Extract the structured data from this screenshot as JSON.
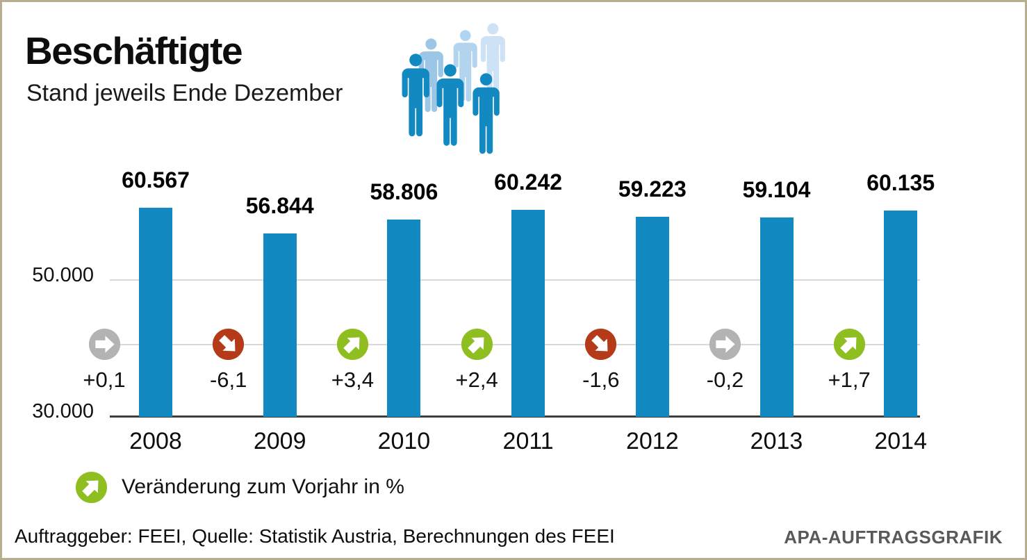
{
  "header": {
    "title": "Beschäftigte",
    "subtitle": "Stand jeweils Ende Dezember"
  },
  "chart_data": {
    "type": "bar",
    "title": "Beschäftigte",
    "subtitle": "Stand jeweils Ende Dezember",
    "categories": [
      "2008",
      "2009",
      "2010",
      "2011",
      "2012",
      "2013",
      "2014"
    ],
    "series": [
      {
        "name": "Beschäftigte (Stand jeweils Ende Dezember)",
        "values": [
          60567,
          56844,
          58806,
          60242,
          59223,
          59104,
          60135
        ]
      }
    ],
    "value_labels": [
      "60.567",
      "56.844",
      "58.806",
      "60.242",
      "59.223",
      "59.104",
      "60.135"
    ],
    "change_series": {
      "name": "Veränderung zum Vorjahr in %",
      "values": [
        0.1,
        -6.1,
        3.4,
        2.4,
        -1.6,
        -0.2,
        1.7
      ],
      "labels": [
        "+0,1",
        "-6,1",
        "+3,4",
        "+2,4",
        "-1,6",
        "-0,2",
        "+1,7"
      ],
      "directions": [
        "flat",
        "down",
        "up",
        "up",
        "down",
        "flat",
        "up"
      ]
    },
    "yticks": [
      50000,
      30000
    ],
    "ytick_labels": [
      "50.000",
      "30.000"
    ],
    "ylim": [
      30000,
      63000
    ],
    "grid": "horizontal",
    "legend_position": "bottom-left"
  },
  "legend": {
    "label": "Veränderung zum Vorjahr in %"
  },
  "footer": {
    "source": "Auftraggeber: FEEI, Quelle: Statistik Austria, Berechnungen des FEEI",
    "brand": "APA-AUFTRAGSGRAFIK"
  },
  "icons": {
    "people_pictogram": "group-of-six-people",
    "change_up": "arrow-up-right-circle",
    "change_down": "arrow-down-right-circle",
    "change_flat": "arrow-right-circle"
  },
  "colors": {
    "bar": "#1389c2",
    "change_up": "#8ebe20",
    "change_down": "#b43a19",
    "change_flat": "#b3b3b3",
    "people_front": "#1389c2",
    "people_back": [
      "#9cc6e6",
      "#b3d4ee",
      "#cde2f4"
    ],
    "gridline": "#d8d8d8",
    "baseline": "#3d3d3d",
    "brand_text": "#595959",
    "frame": "#b6ae8e"
  }
}
